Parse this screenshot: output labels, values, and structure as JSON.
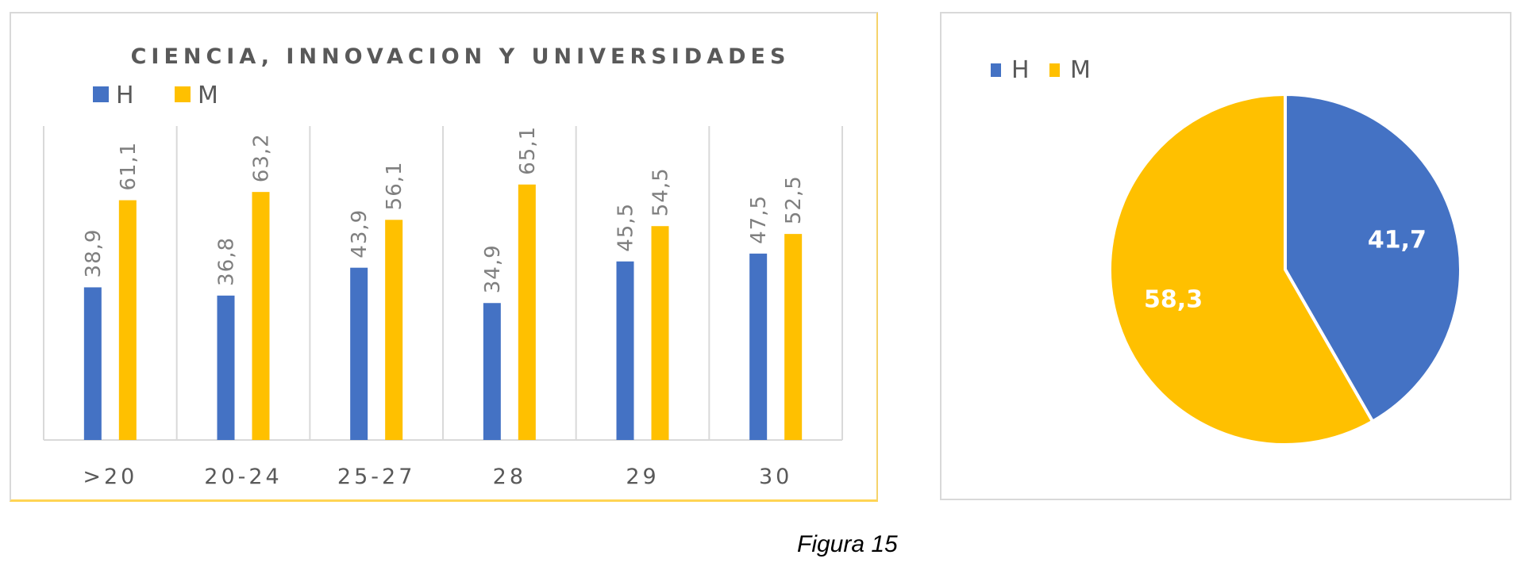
{
  "caption": "Figura 15",
  "colors": {
    "H": "#4472C4",
    "M": "#FFC000"
  },
  "chart_data": [
    {
      "type": "bar",
      "title": "CIENCIA, INNOVACION Y UNIVERSIDADES",
      "categories": [
        ">20",
        "20-24",
        "25-27",
        "28",
        "29",
        "30"
      ],
      "series": [
        {
          "name": "H",
          "values": [
            38.9,
            36.8,
            43.9,
            34.9,
            45.5,
            47.5
          ],
          "labels": [
            "38,9",
            "36,8",
            "43,9",
            "34,9",
            "45,5",
            "47,5"
          ]
        },
        {
          "name": "M",
          "values": [
            61.1,
            63.2,
            56.1,
            65.1,
            54.5,
            52.5
          ],
          "labels": [
            "61,1",
            "63,2",
            "56,1",
            "65,1",
            "54,5",
            "52,5"
          ]
        }
      ],
      "ylim": [
        0,
        80
      ],
      "grid": "vertical category separators",
      "legend": "top-left"
    },
    {
      "type": "pie",
      "categories": [
        "H",
        "M"
      ],
      "values": [
        41.7,
        58.3
      ],
      "labels": [
        "41,7",
        "58,3"
      ],
      "legend": "top-left"
    }
  ]
}
